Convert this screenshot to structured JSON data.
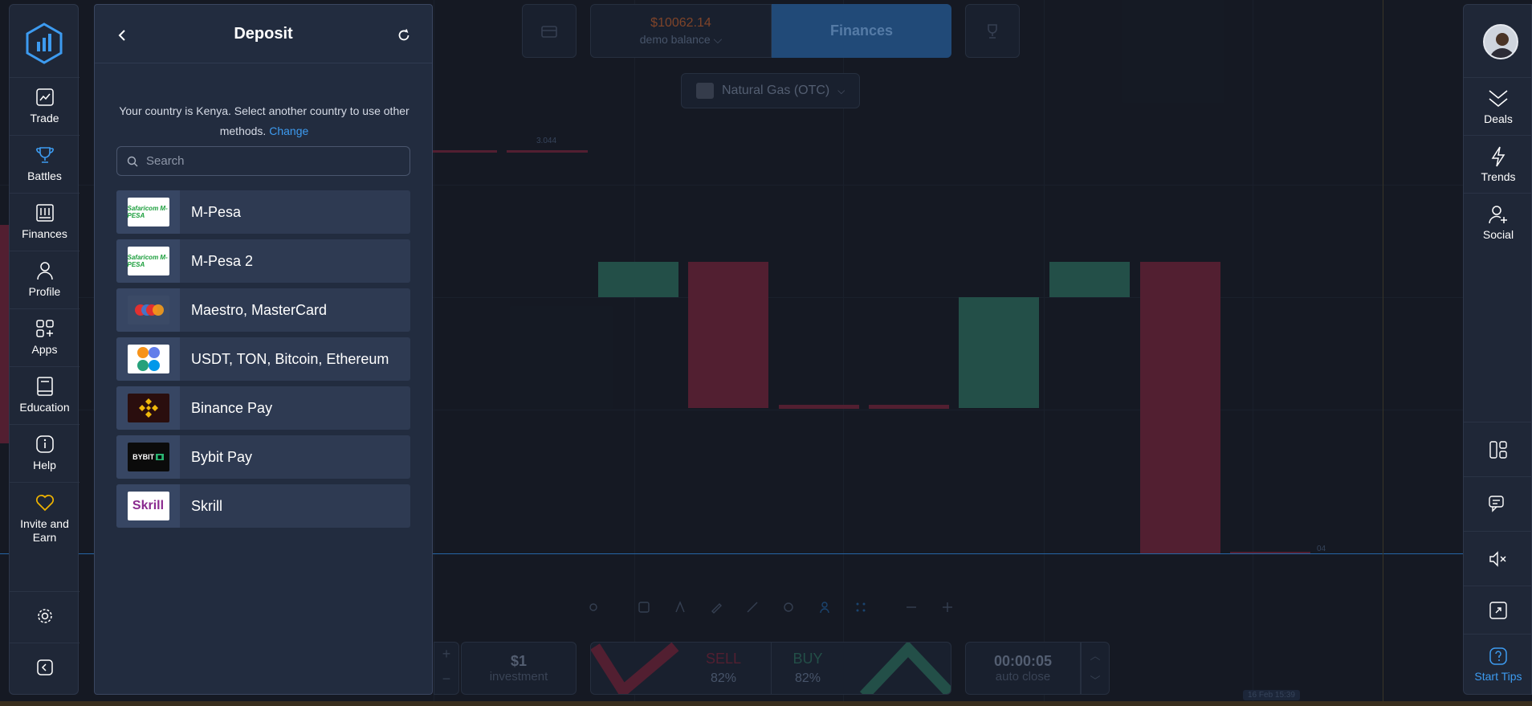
{
  "sidebar": {
    "items": [
      {
        "label": "Trade",
        "icon": "chart-line-icon"
      },
      {
        "label": "Battles",
        "icon": "trophy-icon"
      },
      {
        "label": "Finances",
        "icon": "finances-icon"
      },
      {
        "label": "Profile",
        "icon": "user-icon"
      },
      {
        "label": "Apps",
        "icon": "apps-icon"
      },
      {
        "label": "Education",
        "icon": "book-icon"
      },
      {
        "label": "Help",
        "icon": "info-icon"
      },
      {
        "label": "Invite and Earn",
        "icon": "heart-icon"
      }
    ]
  },
  "deposit": {
    "title": "Deposit",
    "country_note": "Your country is Kenya. Select another country to use other methods.",
    "change_label": "Change",
    "search_placeholder": "Search",
    "methods": [
      {
        "name": "M-Pesa",
        "logo_text": "Safaricom M-PESA"
      },
      {
        "name": "M-Pesa 2",
        "logo_text": "Safaricom M-PESA"
      },
      {
        "name": "Maestro, MasterCard",
        "logo_text": ""
      },
      {
        "name": "USDT, TON, Bitcoin, Ethereum",
        "logo_text": ""
      },
      {
        "name": "Binance Pay",
        "logo_text": ""
      },
      {
        "name": "Bybit Pay",
        "logo_text": "BYBIT"
      },
      {
        "name": "Skrill",
        "logo_text": "Skrill"
      }
    ]
  },
  "header": {
    "balance_amount": "$10062.14",
    "balance_label": "demo balance",
    "finances_label": "Finances",
    "asset": "Natural Gas (OTC)"
  },
  "chart": {
    "price_label_top": "3.044",
    "price_label_bottom": "04",
    "time_label": "16 Feb 15:39"
  },
  "trade": {
    "investment_value": "$1",
    "investment_label": "investment",
    "sell_label": "SELL",
    "sell_pct": "82%",
    "buy_label": "BUY",
    "buy_pct": "82%",
    "timer": "00:00:05",
    "timer_label": "auto close"
  },
  "right_sidebar": {
    "items": [
      {
        "label": "Deals",
        "icon": "deals-icon"
      },
      {
        "label": "Trends",
        "icon": "lightning-icon"
      },
      {
        "label": "Social",
        "icon": "add-user-icon"
      }
    ],
    "start_tips": "Start Tips"
  },
  "colors": {
    "accent": "#3d9bf0",
    "panel": "#222c3f",
    "candle_up": "#26564f",
    "candle_down": "#5a2236"
  }
}
